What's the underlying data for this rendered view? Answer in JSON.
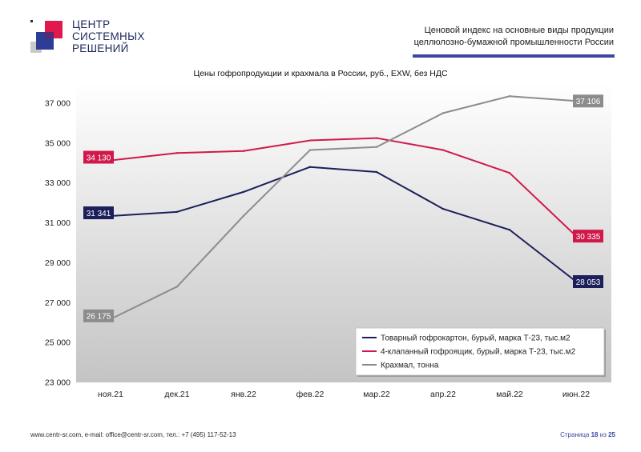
{
  "logo": {
    "lines": [
      "ЦЕНТР",
      "СИСТЕМНЫХ",
      "РЕШЕНИЙ"
    ]
  },
  "header": {
    "line1": "Ценовой индекс на основные виды продукции",
    "line2": "целлюлозно-бумажной промышленности России",
    "accent_color": "#3b48a0"
  },
  "chart_data": {
    "type": "line",
    "title": "Цены гофропродукции и крахмала в России, руб., EXW, без НДС",
    "categories": [
      "ноя.21",
      "дек.21",
      "янв.22",
      "фев.22",
      "мар.22",
      "апр.22",
      "май.22",
      "июн.22"
    ],
    "ylim": [
      23000,
      38000
    ],
    "yticks": [
      23000,
      25000,
      27000,
      29000,
      31000,
      33000,
      35000,
      37000
    ],
    "ytick_labels": [
      "23 000",
      "25 000",
      "27 000",
      "29 000",
      "31 000",
      "33 000",
      "35 000",
      "37 000"
    ],
    "grid": false,
    "legend_position": "bottom-right",
    "series": [
      {
        "name": "Товарный гофрокартон, бурый, марка Т-23, тыс.м2",
        "color": "#1c1f5a",
        "values": [
          31341,
          31550,
          32550,
          33800,
          33550,
          31700,
          30650,
          28053
        ],
        "labels": [
          {
            "index": 0,
            "text": "31 341"
          },
          {
            "index": 7,
            "text": "28 053"
          }
        ]
      },
      {
        "name": "4-клапанный гофроящик, бурый, марка Т-23, тыс.м2",
        "color": "#d0194a",
        "values": [
          34130,
          34500,
          34600,
          35130,
          35250,
          34650,
          33500,
          30335
        ],
        "labels": [
          {
            "index": 0,
            "text": "34 130"
          },
          {
            "index": 7,
            "text": "30 335"
          }
        ]
      },
      {
        "name": "Крахмал, тонна",
        "color": "#8c8c8c",
        "values": [
          26175,
          27800,
          31350,
          34650,
          34800,
          36500,
          37350,
          37106
        ],
        "labels": [
          {
            "index": 0,
            "text": "26 175"
          },
          {
            "index": 7,
            "text": "37 106"
          }
        ]
      }
    ]
  },
  "footer": {
    "contacts": "www.centr-sr.com, e-mail: office@centr-sr.com, тел.: +7 (495) 117-52-13",
    "page_prefix": "Страница ",
    "page_current": "18",
    "page_sep": " из ",
    "page_total": "25"
  }
}
